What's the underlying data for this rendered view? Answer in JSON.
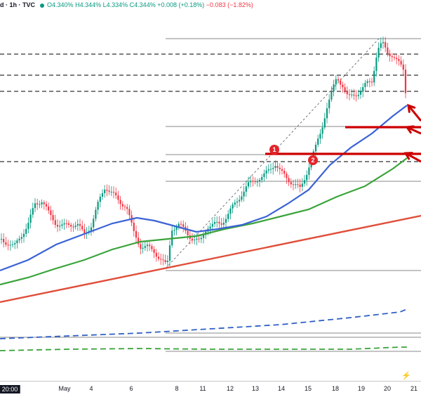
{
  "header": {
    "symbol": "d · 1h · TVC",
    "open": "O4.340%",
    "high": "H4.344%",
    "low": "L4.334%",
    "close": "C4.344%",
    "change": "+0.008 (+0.18%)",
    "change_neg": "−0.083 (−1.82%)"
  },
  "colors": {
    "up": "#089981",
    "down": "#f23645",
    "ma_fast": "#3a62d6",
    "ma_slow": "#3aa33a",
    "trendline": "#e04e3a",
    "resistance": "#cc0000",
    "level": "#333333",
    "volume_dash": "#2f5fc4"
  },
  "markers": [
    {
      "label": "1"
    },
    {
      "label": "2"
    }
  ],
  "chart_data": {
    "type": "line",
    "xlabel": "",
    "ylabel": "",
    "x_tick_labels": [
      "20:00",
      "May",
      "4",
      "6",
      "8",
      "11",
      "12",
      "13",
      "14",
      "15",
      "18",
      "19",
      "20",
      "21"
    ],
    "close_path": [
      [
        0,
        340
      ],
      [
        10,
        345
      ],
      [
        20,
        352
      ],
      [
        30,
        335
      ],
      [
        40,
        320
      ],
      [
        50,
        290
      ],
      [
        60,
        285
      ],
      [
        70,
        305
      ],
      [
        80,
        318
      ],
      [
        90,
        322
      ],
      [
        100,
        320
      ],
      [
        110,
        318
      ],
      [
        120,
        335
      ],
      [
        130,
        320
      ],
      [
        140,
        290
      ],
      [
        150,
        265
      ],
      [
        160,
        275
      ],
      [
        170,
        288
      ],
      [
        180,
        292
      ],
      [
        190,
        330
      ],
      [
        200,
        350
      ],
      [
        210,
        352
      ],
      [
        220,
        358
      ],
      [
        230,
        370
      ],
      [
        238,
        380
      ],
      [
        245,
        325
      ],
      [
        255,
        320
      ],
      [
        265,
        330
      ],
      [
        275,
        340
      ],
      [
        285,
        345
      ],
      [
        295,
        322
      ],
      [
        305,
        320
      ],
      [
        315,
        318
      ],
      [
        325,
        305
      ],
      [
        335,
        290
      ],
      [
        345,
        275
      ],
      [
        355,
        262
      ],
      [
        365,
        255
      ],
      [
        375,
        252
      ],
      [
        385,
        240
      ],
      [
        392,
        232
      ],
      [
        400,
        245
      ],
      [
        410,
        255
      ],
      [
        420,
        262
      ],
      [
        428,
        270
      ],
      [
        435,
        252
      ],
      [
        442,
        230
      ],
      [
        450,
        210
      ],
      [
        458,
        185
      ],
      [
        465,
        155
      ],
      [
        472,
        135
      ],
      [
        480,
        110
      ],
      [
        488,
        120
      ],
      [
        496,
        140
      ],
      [
        505,
        135
      ],
      [
        515,
        128
      ],
      [
        522,
        120
      ],
      [
        530,
        115
      ],
      [
        538,
        70
      ],
      [
        545,
        62
      ],
      [
        552,
        75
      ],
      [
        560,
        78
      ],
      [
        568,
        90
      ],
      [
        575,
        100
      ],
      [
        578,
        130
      ],
      [
        580,
        148
      ]
    ],
    "ma_fast": [
      [
        0,
        385
      ],
      [
        40,
        370
      ],
      [
        80,
        348
      ],
      [
        120,
        333
      ],
      [
        160,
        318
      ],
      [
        195,
        310
      ],
      [
        220,
        314
      ],
      [
        250,
        322
      ],
      [
        280,
        330
      ],
      [
        310,
        326
      ],
      [
        345,
        320
      ],
      [
        380,
        308
      ],
      [
        410,
        290
      ],
      [
        440,
        270
      ],
      [
        470,
        235
      ],
      [
        500,
        210
      ],
      [
        530,
        190
      ],
      [
        560,
        165
      ],
      [
        580,
        150
      ]
    ],
    "ma_slow": [
      [
        0,
        405
      ],
      [
        40,
        395
      ],
      [
        80,
        382
      ],
      [
        120,
        370
      ],
      [
        160,
        355
      ],
      [
        200,
        344
      ],
      [
        240,
        340
      ],
      [
        280,
        336
      ],
      [
        320,
        326
      ],
      [
        360,
        318
      ],
      [
        400,
        308
      ],
      [
        440,
        298
      ],
      [
        480,
        280
      ],
      [
        520,
        265
      ],
      [
        560,
        240
      ],
      [
        580,
        225
      ]
    ],
    "trendline": [
      [
        0,
        430
      ],
      [
        600,
        307
      ]
    ],
    "fib_line": [
      [
        236,
        382
      ],
      [
        540,
        55
      ]
    ],
    "levels": [
      {
        "y": 55,
        "x1": 236,
        "x2": 600,
        "style": "solid"
      },
      {
        "y": 77,
        "x1": 0,
        "x2": 600,
        "style": "dashed"
      },
      {
        "y": 107,
        "x1": 0,
        "x2": 600,
        "style": "dashed"
      },
      {
        "y": 130,
        "x1": 0,
        "x2": 600,
        "style": "dashed"
      },
      {
        "y": 180,
        "x1": 236,
        "x2": 600,
        "style": "solid"
      },
      {
        "y": 220,
        "x1": 236,
        "x2": 600,
        "style": "solid"
      },
      {
        "y": 230,
        "x1": 0,
        "x2": 600,
        "style": "dashed"
      },
      {
        "y": 258,
        "x1": 236,
        "x2": 600,
        "style": "solid"
      },
      {
        "y": 385,
        "x1": 236,
        "x2": 600,
        "style": "solid"
      },
      {
        "y": 474,
        "x1": 236,
        "x2": 600,
        "style": "solid"
      },
      {
        "y": 480,
        "x1": 0,
        "x2": 600,
        "style": "solid"
      },
      {
        "y": 500,
        "x1": 236,
        "x2": 600,
        "style": "solid"
      }
    ],
    "resistance_bars": [
      {
        "y": 181,
        "x1": 492,
        "x2": 600
      },
      {
        "y": 219,
        "x1": 378,
        "x2": 600
      }
    ],
    "arrows": [
      {
        "from": [
          600,
          172
        ],
        "to": [
          582,
          150
        ]
      },
      {
        "from": [
          600,
          190
        ],
        "to": [
          580,
          181
        ]
      },
      {
        "from": [
          600,
          230
        ],
        "to": [
          578,
          218
        ]
      }
    ],
    "volume_dash_fast": [
      [
        0,
        482
      ],
      [
        100,
        478
      ],
      [
        200,
        474
      ],
      [
        300,
        468
      ],
      [
        400,
        462
      ],
      [
        500,
        452
      ],
      [
        570,
        444
      ],
      [
        580,
        440
      ]
    ],
    "volume_dash_slow": [
      [
        0,
        499
      ],
      [
        100,
        497
      ],
      [
        200,
        496
      ],
      [
        300,
        497
      ],
      [
        400,
        497
      ],
      [
        500,
        497
      ],
      [
        570,
        494
      ],
      [
        580,
        494
      ]
    ]
  }
}
